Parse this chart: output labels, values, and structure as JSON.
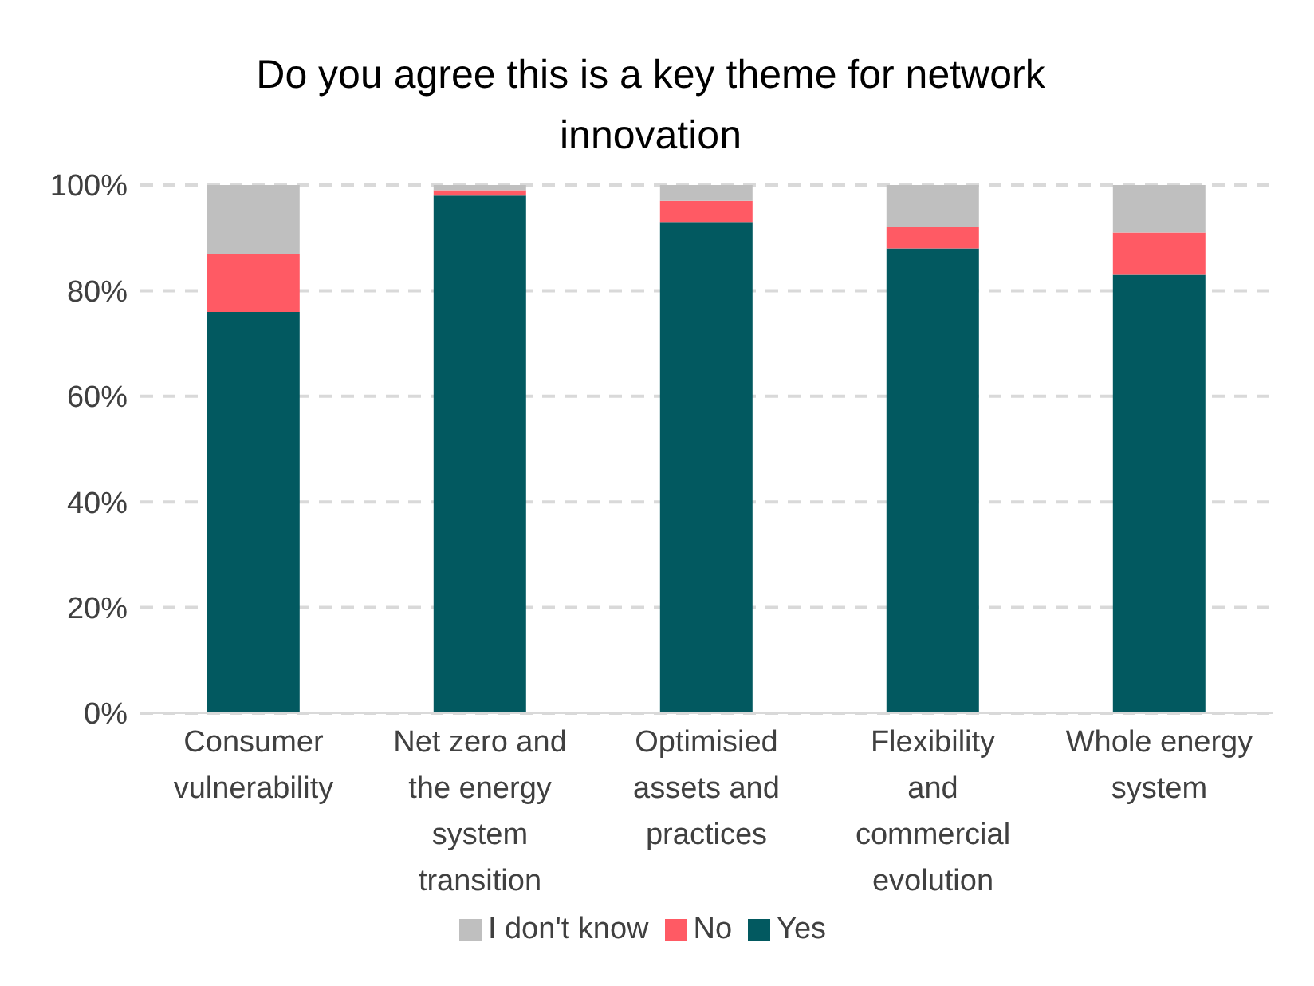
{
  "chart_data": {
    "type": "bar",
    "title": "Do you agree this is a key theme for network innovation",
    "stacked": true,
    "categories": [
      "Consumer vulnerability",
      "Net zero and the energy system transition",
      "Optimisied assets and practices",
      "Flexibility and commercial evolution",
      "Whole energy system"
    ],
    "series": [
      {
        "name": "Yes",
        "color": "#025960",
        "values": [
          76,
          98,
          93,
          88,
          83
        ]
      },
      {
        "name": "No",
        "color": "#ff5a64",
        "values": [
          11,
          1,
          4,
          4,
          8
        ]
      },
      {
        "name": "I don't know",
        "color": "#bfbfbf",
        "values": [
          13,
          1,
          3,
          8,
          9
        ]
      }
    ],
    "ylim": [
      0,
      100
    ],
    "yticks": [
      {
        "value": 0,
        "label": "0%"
      },
      {
        "value": 20,
        "label": "20%"
      },
      {
        "value": 40,
        "label": "40%"
      },
      {
        "value": 60,
        "label": "60%"
      },
      {
        "value": 80,
        "label": "80%"
      },
      {
        "value": 100,
        "label": "100%"
      }
    ],
    "grid": "y",
    "legend": "bottom"
  }
}
